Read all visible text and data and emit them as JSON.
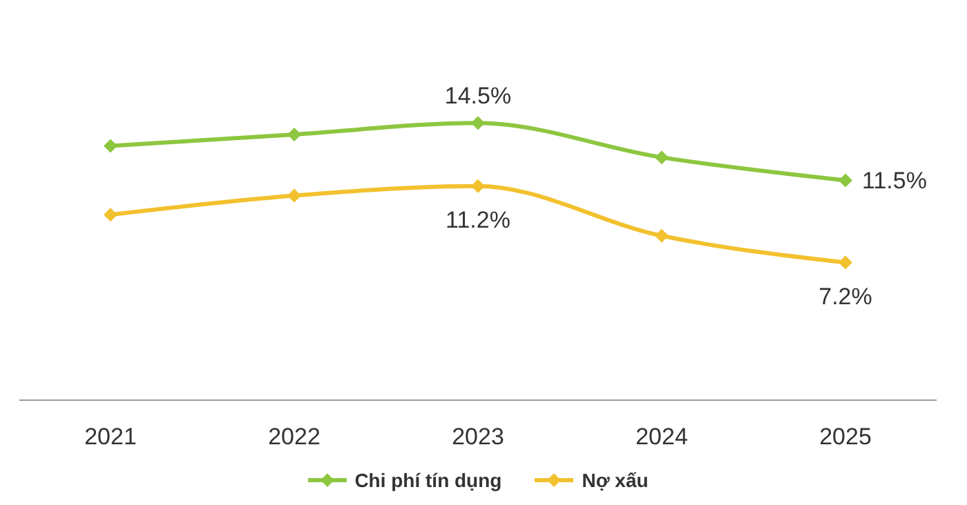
{
  "chart_data": {
    "type": "line",
    "categories": [
      "2021",
      "2022",
      "2023",
      "2024",
      "2025"
    ],
    "series": [
      {
        "name": "Chi phí tín dụng",
        "color": "#8dc63f",
        "values": [
          13.3,
          13.9,
          14.5,
          12.7,
          11.5
        ],
        "value_labels": [
          null,
          null,
          "14.5%",
          null,
          "11.5%"
        ]
      },
      {
        "name": "Nợ xấu",
        "color": "#f2c12e",
        "values": [
          9.7,
          10.7,
          11.2,
          8.6,
          7.2
        ],
        "value_labels": [
          null,
          null,
          "11.2%",
          null,
          "7.2%"
        ]
      }
    ],
    "marker": "diamond",
    "line_style": "solid",
    "grid": false,
    "legend": "bottom",
    "tick_labels": "x"
  }
}
